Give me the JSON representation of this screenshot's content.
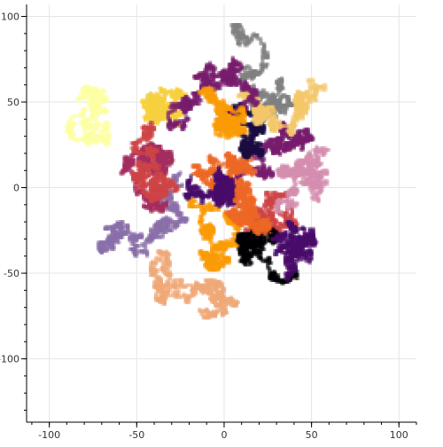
{
  "chart_data": {
    "type": "scatter",
    "title": "",
    "xlabel": "",
    "ylabel": "",
    "xlim": [
      -113,
      110
    ],
    "ylim": [
      -137,
      107
    ],
    "grid": true,
    "legend": "none",
    "x_ticks": [
      -100,
      -50,
      0,
      50,
      100
    ],
    "y_ticks": [
      -100,
      -50,
      0,
      50,
      100
    ],
    "x_tick_labels": [
      "-100",
      "-50",
      "0",
      "50",
      "100"
    ],
    "y_tick_labels": [
      "-100",
      "-50",
      "0",
      "50",
      "100"
    ],
    "marker": "square",
    "palette": [
      "#000004",
      "#1b0c41",
      "#4a0c6b",
      "#781c6d",
      "#a52c60",
      "#cf4446",
      "#ed6925",
      "#fb9b06",
      "#f7d13d",
      "#fcffa4",
      "#808080",
      "#d48fb0",
      "#8a6fa8",
      "#f0a878",
      "#f5c86a"
    ],
    "series": [
      {
        "color": "#781c6d",
        "start": [
          10,
          10
        ],
        "steps": 1200,
        "seed": 1
      },
      {
        "color": "#ed6925",
        "start": [
          -10,
          5
        ],
        "steps": 1200,
        "seed": 2
      },
      {
        "color": "#1b0c41",
        "start": [
          20,
          20
        ],
        "steps": 1200,
        "seed": 3
      },
      {
        "color": "#fb9b06",
        "start": [
          -20,
          -10
        ],
        "steps": 1200,
        "seed": 4
      },
      {
        "color": "#4a0c6b",
        "start": [
          0,
          0
        ],
        "steps": 1200,
        "seed": 5
      },
      {
        "color": "#cf4446",
        "start": [
          30,
          -10
        ],
        "steps": 1200,
        "seed": 6
      },
      {
        "color": "#f7d13d",
        "start": [
          -40,
          50
        ],
        "steps": 1200,
        "seed": 7
      },
      {
        "color": "#808080",
        "start": [
          30,
          60
        ],
        "steps": 1200,
        "seed": 8
      },
      {
        "color": "#d48fb0",
        "start": [
          60,
          10
        ],
        "steps": 1200,
        "seed": 9
      },
      {
        "color": "#8a6fa8",
        "start": [
          -60,
          -20
        ],
        "steps": 1200,
        "seed": 10
      },
      {
        "color": "#f0a878",
        "start": [
          -5,
          -60
        ],
        "steps": 1200,
        "seed": 11
      },
      {
        "color": "#a52c60",
        "start": [
          -30,
          20
        ],
        "steps": 1200,
        "seed": 12
      },
      {
        "color": "#000004",
        "start": [
          15,
          -30
        ],
        "steps": 1200,
        "seed": 13
      },
      {
        "color": "#f5c86a",
        "start": [
          40,
          40
        ],
        "steps": 1200,
        "seed": 14
      },
      {
        "color": "#fcffa4",
        "start": [
          -70,
          55
        ],
        "steps": 1200,
        "seed": 15
      },
      {
        "color": "#ed6925",
        "start": [
          10,
          -20
        ],
        "steps": 1200,
        "seed": 16
      },
      {
        "color": "#781c6d",
        "start": [
          -20,
          40
        ],
        "steps": 1200,
        "seed": 17
      },
      {
        "color": "#fb9b06",
        "start": [
          5,
          35
        ],
        "steps": 1200,
        "seed": 18
      },
      {
        "color": "#4a0c6b",
        "start": [
          50,
          -30
        ],
        "steps": 1200,
        "seed": 19
      },
      {
        "color": "#cf4446",
        "start": [
          -50,
          0
        ],
        "steps": 1200,
        "seed": 20
      }
    ]
  }
}
